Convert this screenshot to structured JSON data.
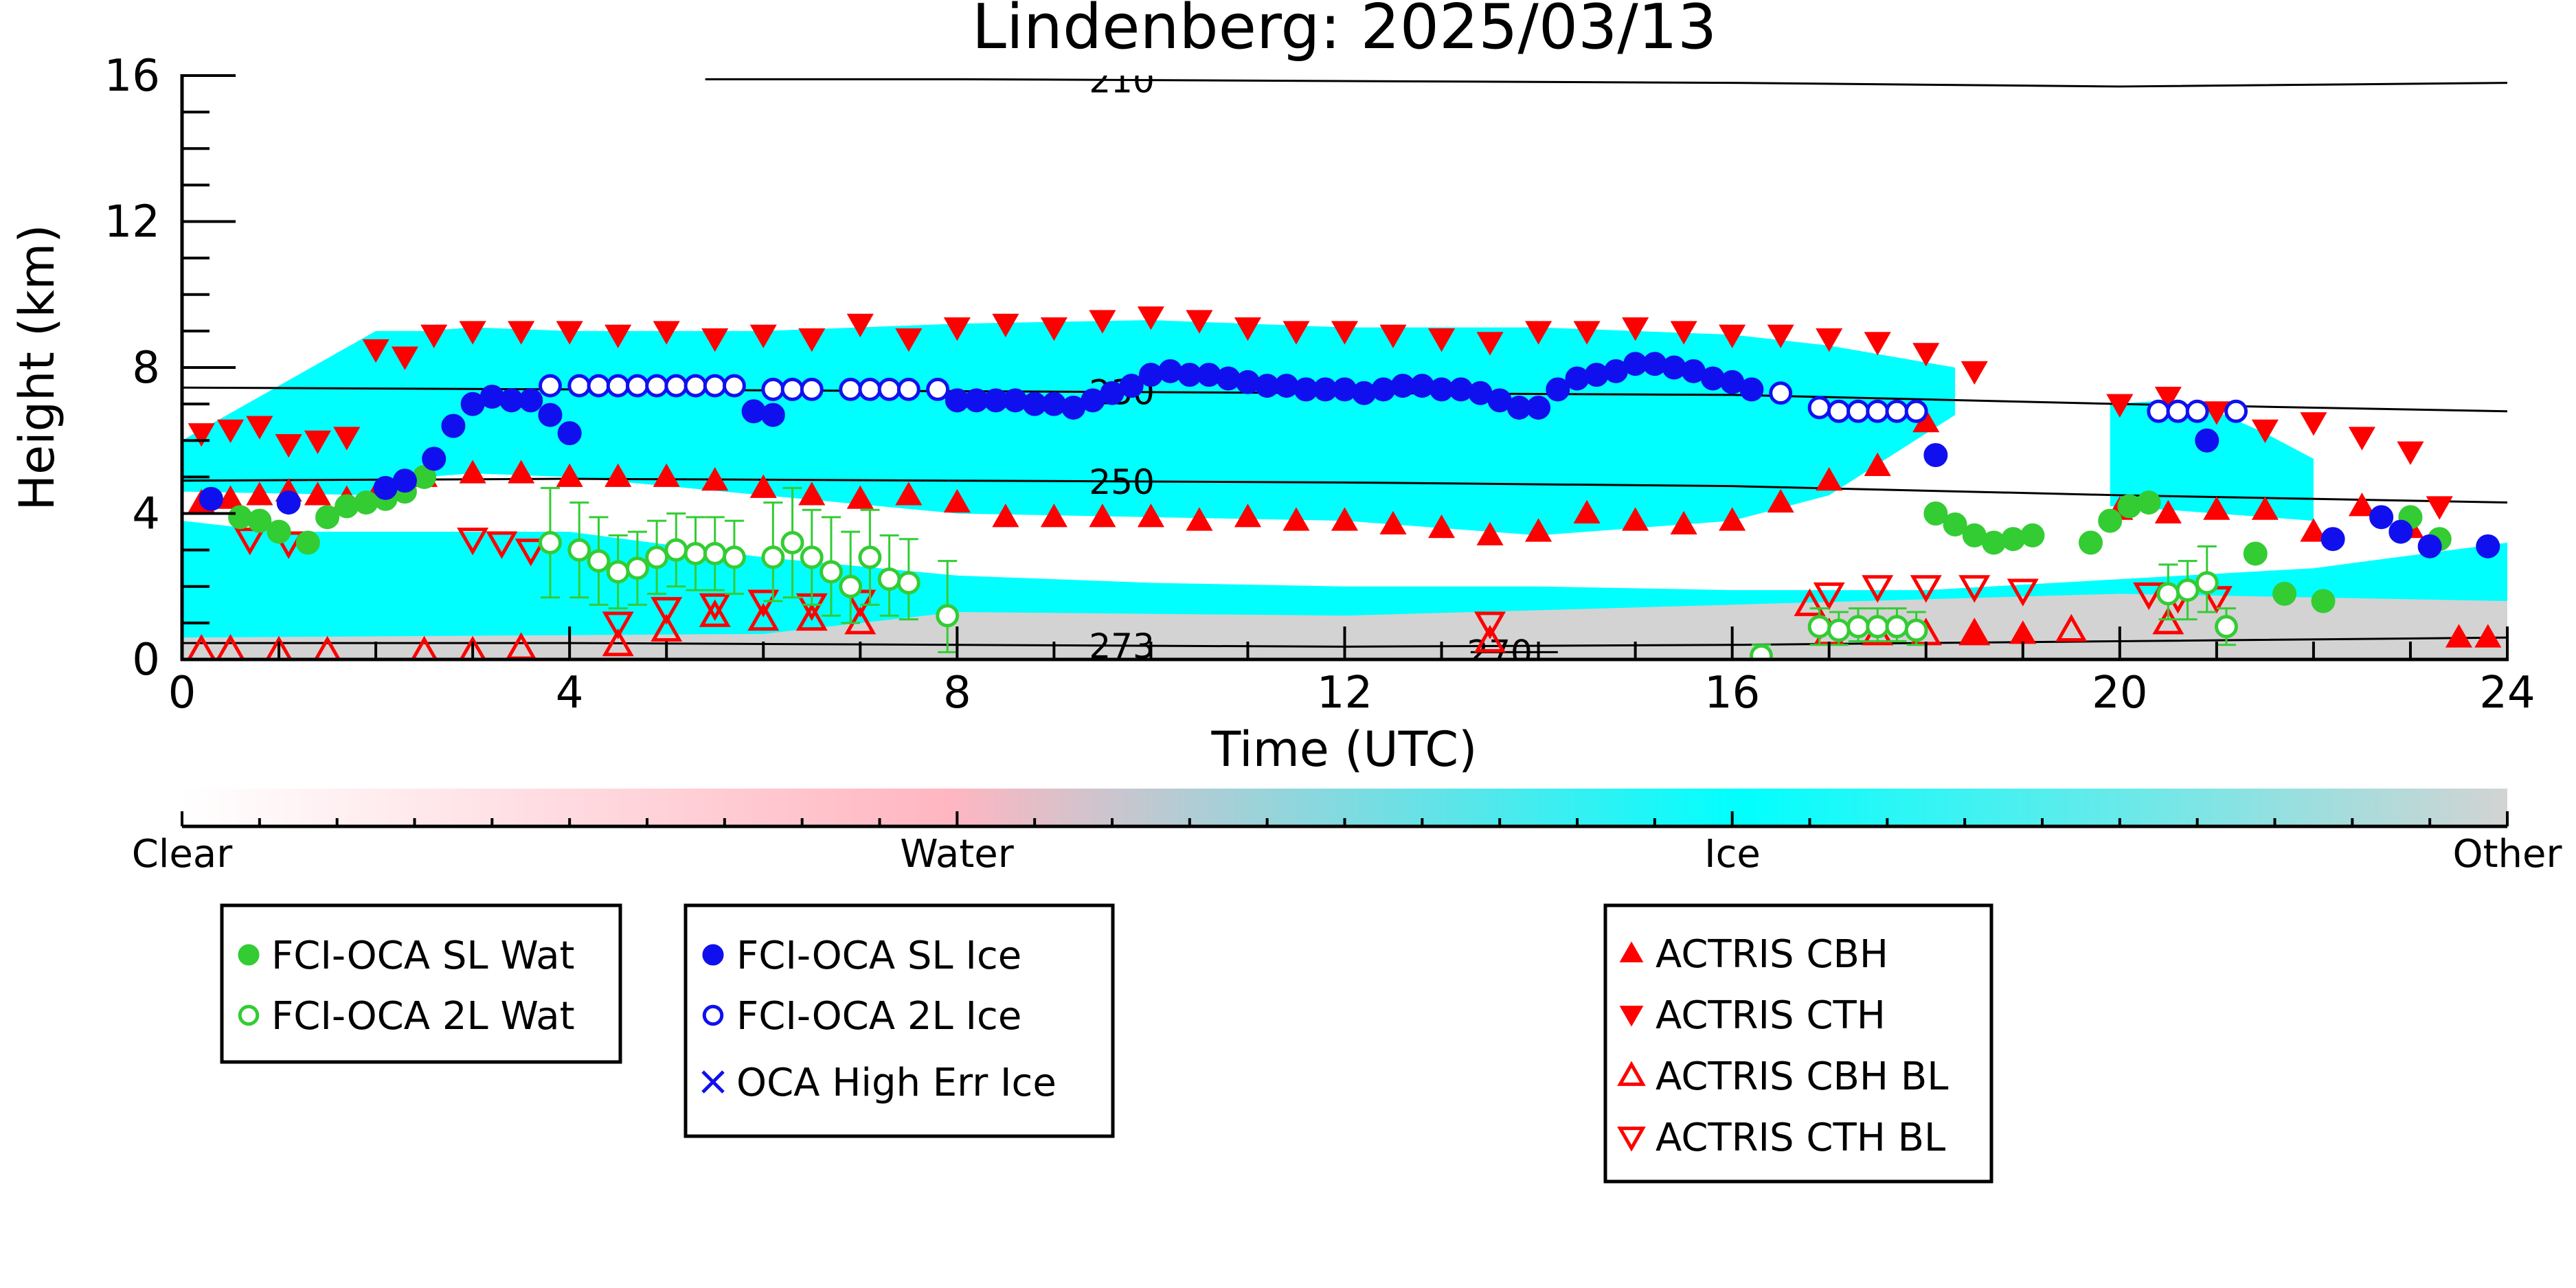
{
  "chart_data": {
    "type": "scatter",
    "title": "Lindenberg: 2025/03/13",
    "xlabel": "Time (UTC)",
    "ylabel": "Height (km)",
    "xlim": [
      0,
      24
    ],
    "ylim": [
      0,
      16
    ],
    "xticks": [
      0,
      4,
      8,
      12,
      16,
      20,
      24
    ],
    "yticks": [
      0,
      4,
      8,
      12,
      16
    ],
    "grid": false,
    "background": {
      "type": "heatmap",
      "colorbar": {
        "labels": [
          "Clear",
          "Water",
          "Ice",
          "Other"
        ],
        "colors": [
          "#ffffff",
          "#ffb6c1",
          "#00ffff",
          "#d3d3d3"
        ]
      },
      "regions": [
        {
          "class": "Ice",
          "layer": "high",
          "x": [
            0,
            2,
            2.5,
            3,
            4,
            6,
            8,
            10,
            12,
            14,
            16,
            17,
            18.3
          ],
          "top": [
            6,
            9,
            9,
            9.1,
            9,
            9,
            9.2,
            9.3,
            9.1,
            9.1,
            8.9,
            8.6,
            8
          ],
          "bottom": [
            4.6,
            4.5,
            5,
            5.1,
            5,
            4.5,
            4,
            3.9,
            3.8,
            3.4,
            3.8,
            4.5,
            6.7
          ]
        },
        {
          "class": "Ice",
          "layer": "evening",
          "x": [
            19.9,
            20.5,
            21,
            21.5,
            22
          ],
          "top": [
            7,
            7.1,
            6.8,
            6.2,
            5.5
          ],
          "bottom": [
            4.2,
            4.1,
            4,
            3.9,
            3.8
          ]
        },
        {
          "class": "Ice",
          "layer": "low",
          "x": [
            0,
            1,
            2,
            4,
            6,
            8,
            10,
            12,
            14,
            16,
            18,
            20,
            22,
            24
          ],
          "top": [
            3.8,
            3.5,
            3.5,
            3.5,
            2.8,
            2.3,
            2.1,
            2.0,
            2.0,
            1.9,
            1.9,
            2.2,
            2.5,
            3.2
          ],
          "bottom": [
            0.6,
            0.6,
            0.5,
            0.5,
            0.5,
            0.5,
            0.5,
            0.5,
            0.5,
            0.6,
            0.6,
            0.6,
            0.6,
            0.5
          ]
        },
        {
          "class": "Other",
          "layer": "surface",
          "x": [
            0,
            6,
            8,
            12,
            16,
            20,
            24
          ],
          "top": [
            0.6,
            0.7,
            1.3,
            1.2,
            1.5,
            1.8,
            1.6
          ],
          "bottom": [
            0,
            0,
            0,
            0,
            0,
            0,
            0
          ]
        }
      ]
    },
    "isotherms": [
      {
        "label": "210",
        "x": [
          5.4,
          8,
          12,
          16,
          20,
          24
        ],
        "y": [
          15.9,
          15.9,
          15.85,
          15.8,
          15.7,
          15.8
        ],
        "label_x": 9.7
      },
      {
        "label": "230",
        "x": [
          0,
          4,
          8,
          12,
          16,
          20,
          24
        ],
        "y": [
          7.45,
          7.4,
          7.35,
          7.3,
          7.25,
          7.0,
          6.8
        ],
        "label_x": 9.7
      },
      {
        "label": "250",
        "x": [
          0,
          4,
          8,
          12,
          16,
          20,
          24
        ],
        "y": [
          4.9,
          4.95,
          4.9,
          4.85,
          4.75,
          4.5,
          4.3
        ],
        "label_x": 9.7
      },
      {
        "label": "273",
        "x": [
          0,
          4,
          8,
          12,
          16,
          20,
          24
        ],
        "y": [
          0.45,
          0.45,
          0.4,
          0.35,
          0.4,
          0.5,
          0.6
        ],
        "label_x": 9.7
      },
      {
        "label": "270",
        "x": [
          13.3,
          14.2
        ],
        "y": [
          0.2,
          0.2
        ],
        "label_x": 13.6
      }
    ],
    "series": [
      {
        "name": "FCI-OCA SL Wat",
        "marker": "filled-circle",
        "color": "#33cc33",
        "x": [
          0.6,
          0.8,
          1,
          1.3,
          1.5,
          1.7,
          1.9,
          2.1,
          2.3,
          2.5,
          18.1,
          18.3,
          18.5,
          18.7,
          18.9,
          19.1,
          19.7,
          19.9,
          20.1,
          20.3,
          21.4,
          21.7,
          22.1,
          23,
          23.3
        ],
        "y": [
          3.9,
          3.8,
          3.5,
          3.2,
          3.9,
          4.2,
          4.3,
          4.4,
          4.6,
          5.0,
          4.0,
          3.7,
          3.4,
          3.2,
          3.3,
          3.4,
          3.2,
          3.8,
          4.2,
          4.3,
          2.9,
          1.8,
          1.6,
          3.9,
          3.3
        ]
      },
      {
        "name": "FCI-OCA 2L Wat",
        "marker": "open-circle",
        "color": "#33cc33",
        "x": [
          3.8,
          4.1,
          4.3,
          4.5,
          4.7,
          4.9,
          5.1,
          5.3,
          5.5,
          5.7,
          6.1,
          6.3,
          6.5,
          6.7,
          6.9,
          7.1,
          7.3,
          7.5,
          7.9,
          16.3,
          16.9,
          17.1,
          17.3,
          17.5,
          17.7,
          17.9,
          20.5,
          20.7,
          20.9,
          21.1
        ],
        "y": [
          3.2,
          3.0,
          2.7,
          2.4,
          2.5,
          2.8,
          3.0,
          2.9,
          2.9,
          2.8,
          2.8,
          3.2,
          2.8,
          2.4,
          2.0,
          2.8,
          2.2,
          2.1,
          1.2,
          0.1,
          0.9,
          0.8,
          0.9,
          0.9,
          0.9,
          0.8,
          1.8,
          1.9,
          2.1,
          0.9
        ],
        "error_low": [
          1.5,
          1.3,
          1.2,
          1.0,
          1.0,
          1.0,
          1.0,
          1.0,
          1.0,
          1.0,
          1.2,
          1.5,
          1.3,
          1.2,
          1.0,
          1.3,
          1.0,
          1.0,
          1.0,
          0.3,
          0.5,
          0.4,
          0.4,
          0.4,
          0.4,
          0.4,
          0.7,
          0.8,
          0.8,
          0.5
        ],
        "error_high": [
          1.5,
          1.3,
          1.2,
          1.0,
          1.0,
          1.0,
          1.0,
          1.0,
          1.0,
          1.0,
          1.5,
          1.5,
          1.3,
          1.5,
          1.5,
          1.3,
          1.2,
          1.2,
          1.5,
          0.3,
          0.5,
          0.5,
          0.5,
          0.5,
          0.5,
          0.5,
          0.8,
          0.8,
          1.0,
          0.5
        ]
      },
      {
        "name": "FCI-OCA SL Ice",
        "marker": "filled-circle",
        "color": "#1010ee",
        "x": [
          0.3,
          1.1,
          2.1,
          2.3,
          2.6,
          2.8,
          3.0,
          3.2,
          3.4,
          3.6,
          3.8,
          4.0,
          5.9,
          6.1,
          8.0,
          8.2,
          8.4,
          8.6,
          8.8,
          9.0,
          9.2,
          9.4,
          9.6,
          9.8,
          10.0,
          10.2,
          10.4,
          10.6,
          10.8,
          11.0,
          11.2,
          11.4,
          11.6,
          11.8,
          12.0,
          12.2,
          12.4,
          12.6,
          12.8,
          13.0,
          13.2,
          13.4,
          13.6,
          13.8,
          14.0,
          14.2,
          14.4,
          14.6,
          14.8,
          15.0,
          15.2,
          15.4,
          15.6,
          15.8,
          16.0,
          16.2,
          18.1,
          20.9,
          22.2,
          22.7,
          22.9,
          23.2,
          23.8
        ],
        "y": [
          4.4,
          4.3,
          4.7,
          4.9,
          5.5,
          6.4,
          7.0,
          7.2,
          7.1,
          7.1,
          6.7,
          6.2,
          6.8,
          6.7,
          7.1,
          7.1,
          7.1,
          7.1,
          7.0,
          7.0,
          6.9,
          7.1,
          7.3,
          7.5,
          7.8,
          7.9,
          7.8,
          7.8,
          7.7,
          7.6,
          7.5,
          7.5,
          7.4,
          7.4,
          7.4,
          7.3,
          7.4,
          7.5,
          7.5,
          7.4,
          7.4,
          7.3,
          7.1,
          6.9,
          6.9,
          7.4,
          7.7,
          7.8,
          7.9,
          8.1,
          8.1,
          8.0,
          7.9,
          7.7,
          7.6,
          7.4,
          5.6,
          6.0,
          3.3,
          3.9,
          3.5,
          3.1,
          3.1
        ]
      },
      {
        "name": "FCI-OCA 2L Ice",
        "marker": "open-circle",
        "color": "#1010ee",
        "x": [
          3.8,
          4.1,
          4.3,
          4.5,
          4.7,
          4.9,
          5.1,
          5.3,
          5.5,
          5.7,
          6.1,
          6.3,
          6.5,
          6.9,
          7.1,
          7.3,
          7.5,
          7.8,
          16.5,
          16.9,
          17.1,
          17.3,
          17.5,
          17.7,
          17.9,
          20.4,
          20.6,
          20.8,
          21.2
        ],
        "y": [
          7.5,
          7.5,
          7.5,
          7.5,
          7.5,
          7.5,
          7.5,
          7.5,
          7.5,
          7.5,
          7.4,
          7.4,
          7.4,
          7.4,
          7.4,
          7.4,
          7.4,
          7.4,
          7.3,
          6.9,
          6.8,
          6.8,
          6.8,
          6.8,
          6.8,
          6.8,
          6.8,
          6.8,
          6.8
        ]
      },
      {
        "name": "OCA High Err Ice",
        "marker": "x",
        "color": "#1010ee",
        "x": [],
        "y": []
      },
      {
        "name": "ACTRIS CBH",
        "marker": "filled-triangle-up",
        "color": "#ff0000",
        "x": [
          0.2,
          0.5,
          0.8,
          1.1,
          1.4,
          1.7,
          2.0,
          2.5,
          3.0,
          3.5,
          4.0,
          4.5,
          5.0,
          5.5,
          6.0,
          6.5,
          7.0,
          7.5,
          8.0,
          8.5,
          9.0,
          9.5,
          10.0,
          10.5,
          11.0,
          11.5,
          12.0,
          12.5,
          13.0,
          13.5,
          14.0,
          14.5,
          15.0,
          15.5,
          16.0,
          16.5,
          17.0,
          17.5,
          18.0,
          18.5,
          19.0,
          20.0,
          20.5,
          21.0,
          21.5,
          22.0,
          22.5,
          23.0,
          23.5,
          23.8
        ],
        "y": [
          4.3,
          4.4,
          4.5,
          4.6,
          4.5,
          4.4,
          4.5,
          5.0,
          5.1,
          5.1,
          5.0,
          5.0,
          5.0,
          4.9,
          4.7,
          4.5,
          4.4,
          4.5,
          4.3,
          3.9,
          3.9,
          3.9,
          3.9,
          3.8,
          3.9,
          3.8,
          3.8,
          3.7,
          3.6,
          3.4,
          3.5,
          4.0,
          3.8,
          3.7,
          3.8,
          4.3,
          4.9,
          5.3,
          6.5,
          0.7,
          0.7,
          4.1,
          4.0,
          4.1,
          4.1,
          3.5,
          4.2,
          3.6,
          0.6,
          0.6
        ]
      },
      {
        "name": "ACTRIS CTH",
        "marker": "filled-triangle-down",
        "color": "#ff0000",
        "x": [
          0.2,
          0.5,
          0.8,
          1.1,
          1.4,
          1.7,
          2.0,
          2.3,
          2.6,
          3.0,
          3.5,
          4.0,
          4.5,
          5.0,
          5.5,
          6.0,
          6.5,
          7.0,
          7.5,
          8.0,
          8.5,
          9.0,
          9.5,
          10.0,
          10.5,
          11.0,
          11.5,
          12.0,
          12.5,
          13.0,
          13.5,
          14.0,
          14.5,
          15.0,
          15.5,
          16.0,
          16.5,
          17.0,
          17.5,
          18.0,
          18.5,
          20.0,
          20.5,
          21.0,
          21.5,
          22.0,
          22.5,
          23.0,
          23.3
        ],
        "y": [
          6.2,
          6.3,
          6.4,
          5.9,
          6.0,
          6.1,
          8.5,
          8.3,
          8.9,
          9.0,
          9.0,
          9.0,
          8.9,
          9.0,
          8.8,
          8.9,
          8.8,
          9.2,
          8.8,
          9.1,
          9.2,
          9.1,
          9.3,
          9.4,
          9.3,
          9.1,
          9.0,
          9.0,
          8.9,
          8.8,
          8.7,
          9.0,
          9.0,
          9.1,
          9.0,
          8.9,
          8.9,
          8.8,
          8.7,
          8.4,
          7.9,
          7.0,
          7.2,
          6.8,
          6.3,
          6.5,
          6.1,
          5.7,
          4.2
        ]
      },
      {
        "name": "ACTRIS CBH BL",
        "marker": "open-triangle-up",
        "color": "#ff0000",
        "x": [
          0.2,
          0.5,
          1.0,
          1.5,
          2.5,
          3.0,
          3.5,
          4.5,
          5.0,
          5.5,
          6.0,
          6.5,
          7.0,
          13.5,
          16.8,
          17.0,
          17.5,
          18.0,
          18.5,
          19.5,
          20.5
        ],
        "y": [
          0.25,
          0.25,
          0.2,
          0.2,
          0.2,
          0.2,
          0.3,
          0.4,
          0.8,
          1.2,
          1.1,
          1.1,
          1.0,
          0.5,
          1.5,
          0.7,
          0.7,
          0.7,
          0.7,
          0.8,
          1.0
        ]
      },
      {
        "name": "ACTRIS CTH BL",
        "marker": "open-triangle-down",
        "color": "#ff0000",
        "x": [
          0.7,
          1.1,
          3.0,
          3.3,
          3.6,
          4.5,
          5.0,
          5.5,
          6.0,
          6.5,
          7.0,
          13.5,
          17.0,
          17.5,
          18.0,
          18.5,
          19.0,
          20.3,
          20.6,
          21.0
        ],
        "y": [
          3.3,
          3.2,
          3.3,
          3.2,
          3.0,
          1.0,
          1.4,
          1.5,
          1.6,
          1.5,
          1.6,
          1.0,
          1.8,
          2.0,
          2.0,
          2.0,
          1.9,
          1.8,
          1.7,
          1.7
        ]
      }
    ]
  }
}
